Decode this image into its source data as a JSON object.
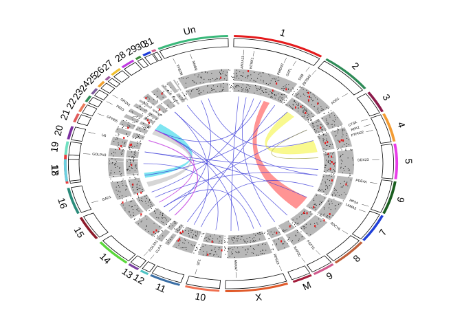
{
  "chromosomes": [
    {
      "label": "1",
      "color": "#e41a1c"
    },
    {
      "label": "2",
      "color": "#2e8b57"
    },
    {
      "label": "3",
      "color": "#8b1a4a"
    },
    {
      "label": "4",
      "color": "#f39c34"
    },
    {
      "label": "5",
      "color": "#e83ce8"
    },
    {
      "label": "6",
      "color": "#1b5e20"
    },
    {
      "label": "7",
      "color": "#1f3fd8"
    },
    {
      "label": "8",
      "color": "#c0603a"
    },
    {
      "label": "9",
      "color": "#d05a8c"
    },
    {
      "label": "M",
      "color": "#a31c3a"
    },
    {
      "label": "X",
      "color": "#e05a2a"
    },
    {
      "label": "10",
      "color": "#f07050"
    },
    {
      "label": "11",
      "color": "#3a6ea5"
    },
    {
      "label": "12",
      "color": "#4fc3c3"
    },
    {
      "label": "13",
      "color": "#7b3fa0"
    },
    {
      "label": "14",
      "color": "#5ad83a"
    },
    {
      "label": "15",
      "color": "#8b1a2a"
    },
    {
      "label": "16",
      "color": "#2a8b7a"
    },
    {
      "label": "17",
      "color": "#e83a3a"
    },
    {
      "label": "18",
      "color": "#6ad0e0"
    },
    {
      "label": "19",
      "color": "#70e0c0"
    },
    {
      "label": "20",
      "color": "#7b2fa0"
    },
    {
      "label": "21",
      "color": "#e05a5a"
    },
    {
      "label": "22",
      "color": "#e87a5a"
    },
    {
      "label": "23",
      "color": "#2e8b57"
    },
    {
      "label": "24",
      "color": "#7b5a9a"
    },
    {
      "label": "25",
      "color": "#f0a030"
    },
    {
      "label": "26",
      "color": "#a05aa0"
    },
    {
      "label": "27",
      "color": "#f0c030"
    },
    {
      "label": "28",
      "color": "#c03ae0"
    },
    {
      "label": "29",
      "color": "#3a8b3a"
    },
    {
      "label": "30",
      "color": "#1a3ad8"
    },
    {
      "label": "31",
      "color": "#d05a8c"
    },
    {
      "label": "Un",
      "color": "#3ab87a"
    }
  ],
  "genes": [
    "ANXA11",
    "KCNK1",
    "PMDN2",
    "GATL",
    "SSB",
    "ZBTB43",
    "ADD1",
    "CTSK",
    "RPA2",
    "PTPN22",
    "DDX23",
    "PDE4A",
    "HPS4",
    "LAMA3",
    "ADCY6",
    "FGF16",
    "RAP2C",
    "RPS19",
    "ANXA7",
    "SF1",
    "CLPX",
    "COL3A1",
    "GAD1",
    "GOLPH3",
    "U6",
    "GPHB5",
    "PIGO",
    "OR1N1",
    "TFB2M",
    "NMBR"
  ]
}
